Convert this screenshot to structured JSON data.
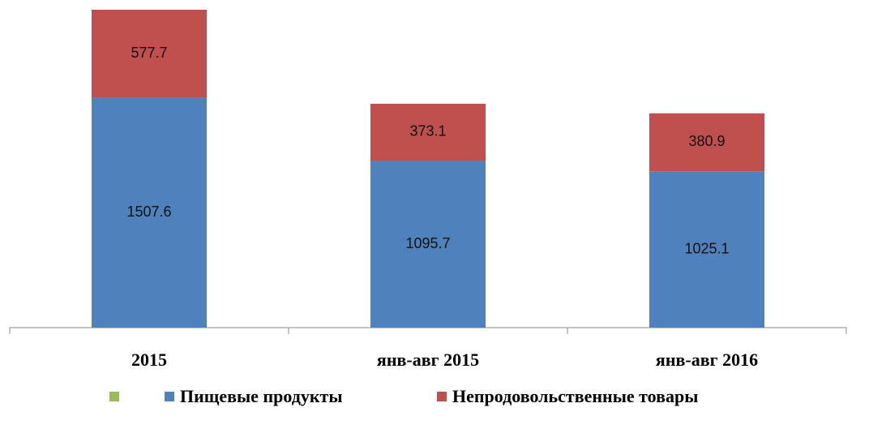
{
  "chart_data": {
    "type": "stacked_bar",
    "categories": [
      "2015",
      "янв-авг 2015",
      "янв-авг 2016"
    ],
    "series": [
      {
        "name": "Пищевые продукты",
        "color": "#4f81bd",
        "values": [
          1507.6,
          1095.7,
          1025.1
        ]
      },
      {
        "name": "Непродовольственные товары",
        "color": "#c0504d",
        "values": [
          577.7,
          373.1,
          380.9
        ]
      }
    ],
    "legend": "bottom"
  }
}
